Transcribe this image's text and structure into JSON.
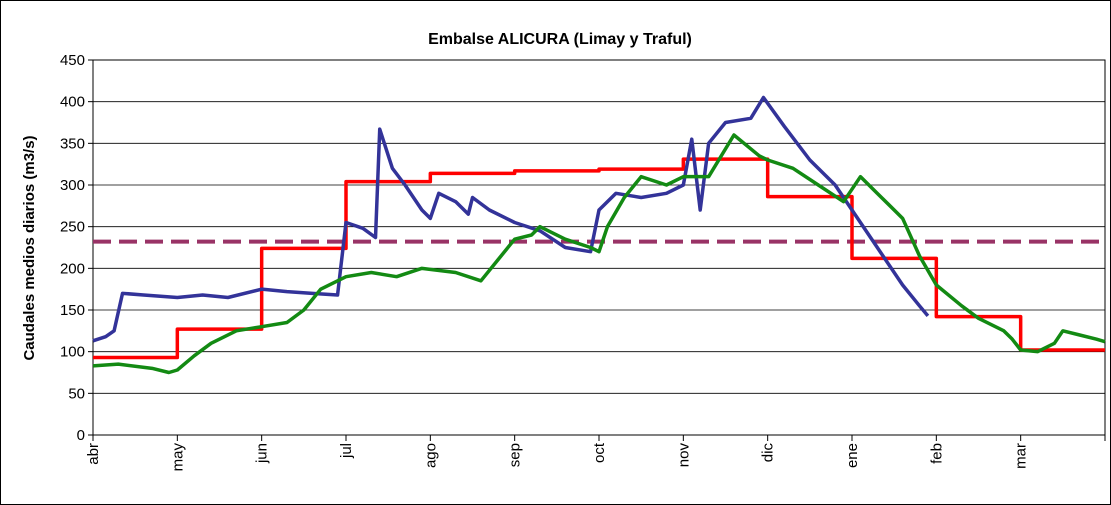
{
  "chart_data": {
    "type": "line",
    "title": "Embalse ALICURA (Limay y Traful)",
    "y_label": "Caudales medios diarios (m3/s)",
    "xlim": [
      0,
      12
    ],
    "xticks": [
      {
        "value": 0,
        "label": "abr"
      },
      {
        "value": 1,
        "label": "may"
      },
      {
        "value": 2,
        "label": "jun"
      },
      {
        "value": 3,
        "label": "jul"
      },
      {
        "value": 4,
        "label": "ago"
      },
      {
        "value": 5,
        "label": "sep"
      },
      {
        "value": 6,
        "label": "oct"
      },
      {
        "value": 7,
        "label": "nov"
      },
      {
        "value": 8,
        "label": "dic"
      },
      {
        "value": 9,
        "label": "ene"
      },
      {
        "value": 10,
        "label": "feb"
      },
      {
        "value": 11,
        "label": "mar"
      }
    ],
    "ylim": [
      0,
      450
    ],
    "yticks": [
      0,
      50,
      100,
      150,
      200,
      250,
      300,
      350,
      400,
      450
    ],
    "grid": true,
    "reference_lines": [
      {
        "value": 232,
        "color": "#993366",
        "dashed": true
      }
    ],
    "series": [
      {
        "color": "#ff0000",
        "step": true,
        "x": [
          0,
          1,
          2,
          3,
          4,
          5,
          6,
          7,
          8,
          9,
          10,
          11
        ],
        "values": [
          93,
          127,
          224,
          304,
          314,
          317,
          319,
          331,
          286,
          212,
          142,
          102
        ]
      },
      {
        "color": "#333399",
        "x": [
          0,
          0.15,
          0.25,
          0.35,
          0.6,
          1,
          1.3,
          1.6,
          2,
          2.3,
          2.6,
          2.9,
          3,
          3.2,
          3.35,
          3.4,
          3.55,
          3.7,
          3.9,
          4,
          4.1,
          4.3,
          4.45,
          4.5,
          4.7,
          5,
          5.3,
          5.6,
          5.9,
          6,
          6.2,
          6.5,
          6.8,
          7,
          7.1,
          7.2,
          7.3,
          7.5,
          7.8,
          7.95,
          8.2,
          8.5,
          8.8,
          9,
          9.2,
          9.4,
          9.6,
          9.8,
          9.9
        ],
        "values": [
          113,
          118,
          125,
          170,
          168,
          165,
          168,
          165,
          175,
          172,
          170,
          168,
          255,
          248,
          237,
          367,
          320,
          300,
          270,
          260,
          290,
          280,
          265,
          285,
          270,
          255,
          245,
          225,
          220,
          270,
          290,
          285,
          290,
          300,
          355,
          270,
          350,
          375,
          380,
          405,
          370,
          330,
          300,
          270,
          240,
          210,
          180,
          155,
          143
        ]
      },
      {
        "color": "#138a13",
        "x": [
          0,
          0.3,
          0.7,
          0.9,
          1,
          1.2,
          1.4,
          1.7,
          2,
          2.3,
          2.5,
          2.7,
          3,
          3.3,
          3.6,
          3.9,
          4.3,
          4.6,
          4.8,
          5,
          5.2,
          5.3,
          5.6,
          5.9,
          6,
          6.1,
          6.3,
          6.5,
          6.8,
          7,
          7.3,
          7.6,
          7.9,
          8,
          8.3,
          8.6,
          8.9,
          9.1,
          9.3,
          9.6,
          9.8,
          10,
          10.3,
          10.5,
          10.8,
          10.9,
          11,
          11.2,
          11.4,
          11.5,
          11.7,
          11.9,
          12
        ],
        "values": [
          83,
          85,
          80,
          75,
          78,
          95,
          110,
          125,
          130,
          135,
          150,
          175,
          190,
          195,
          190,
          200,
          195,
          185,
          210,
          235,
          240,
          250,
          235,
          225,
          220,
          250,
          285,
          310,
          300,
          310,
          310,
          360,
          335,
          330,
          320,
          300,
          280,
          310,
          290,
          260,
          215,
          180,
          155,
          140,
          125,
          115,
          102,
          100,
          110,
          125,
          120,
          115,
          112
        ]
      }
    ]
  }
}
